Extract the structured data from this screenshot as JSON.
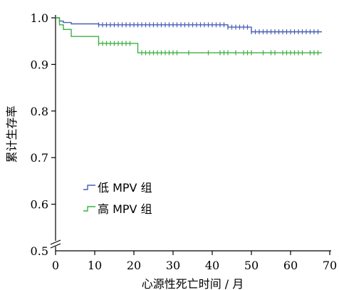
{
  "chart_data": {
    "type": "line",
    "title": "",
    "xlabel": "心源性死亡时间 / 月",
    "ylabel": "累计生存率",
    "xlim": [
      0,
      70
    ],
    "ylim": [
      0.5,
      1.0
    ],
    "x_ticks": [
      0,
      10,
      20,
      30,
      40,
      50,
      60,
      70
    ],
    "y_ticks": [
      0.5,
      0.6,
      0.7,
      0.8,
      0.9,
      1.0
    ],
    "x_tick_labels": [
      "0",
      "10",
      "20",
      "30",
      "40",
      "50",
      "60",
      "70"
    ],
    "y_tick_labels": [
      "0.5",
      "0.6",
      "0.7",
      "0.8",
      "0.9",
      "1.0"
    ],
    "y_axis_break": true,
    "grid": false,
    "legend_position": "left",
    "series": [
      {
        "name": "低 MPV 组",
        "color": "#4a5fb5",
        "steps": [
          [
            0,
            1.0
          ],
          [
            1,
            0.993
          ],
          [
            2,
            0.99
          ],
          [
            4,
            0.987
          ],
          [
            11,
            0.985
          ],
          [
            44,
            0.98
          ],
          [
            50,
            0.97
          ],
          [
            68,
            0.97
          ]
        ],
        "censored_x": [
          11,
          12,
          13,
          14,
          15,
          16,
          17,
          18,
          19,
          20,
          21,
          22,
          23,
          24,
          25,
          26,
          27,
          28,
          29,
          30,
          31,
          32,
          33,
          34,
          35,
          36,
          37,
          38,
          39,
          40,
          41,
          42,
          43,
          44,
          45,
          46,
          47,
          48,
          49,
          50,
          51,
          52,
          53,
          54,
          55,
          56,
          57,
          58,
          59,
          60,
          61,
          62,
          63,
          64,
          65,
          66,
          67
        ]
      },
      {
        "name": "高 MPV 组",
        "color": "#3cb043",
        "steps": [
          [
            0,
            1.0
          ],
          [
            1,
            0.985
          ],
          [
            2,
            0.975
          ],
          [
            4,
            0.96
          ],
          [
            11,
            0.945
          ],
          [
            21,
            0.925
          ],
          [
            68,
            0.925
          ]
        ],
        "censored_x": [
          11,
          12,
          13,
          14,
          15,
          16,
          17,
          18,
          19,
          22,
          23,
          24,
          25,
          26,
          27,
          28,
          29,
          30,
          31,
          34,
          39,
          42,
          43,
          44,
          46,
          48,
          49,
          50,
          53,
          55,
          56,
          58,
          59,
          60,
          61,
          62,
          63,
          65,
          66,
          67
        ]
      }
    ]
  }
}
